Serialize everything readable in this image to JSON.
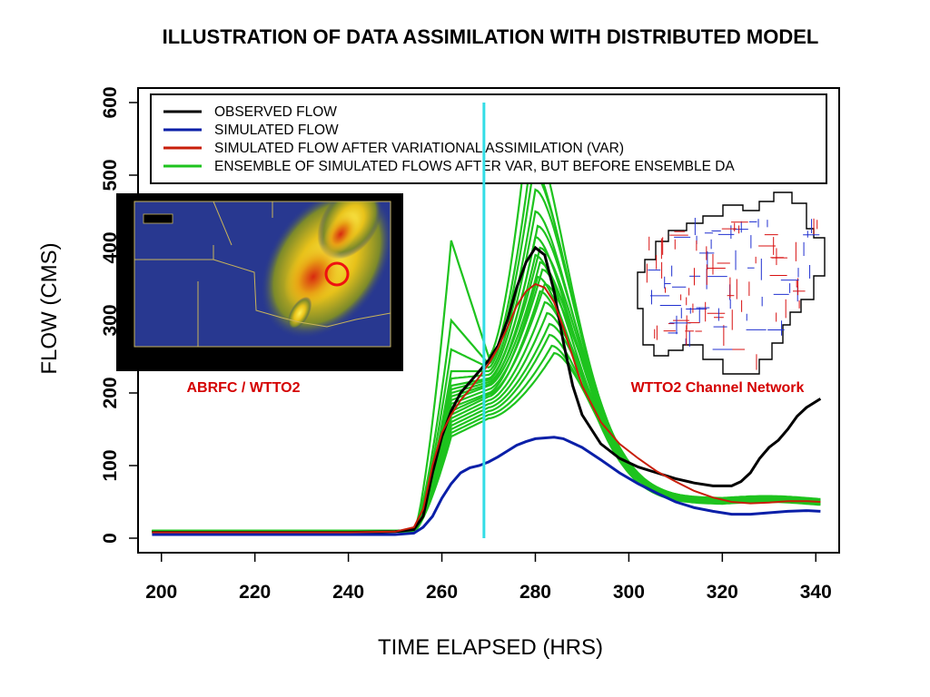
{
  "chart_data": {
    "type": "line",
    "title": "ILLUSTRATION OF DATA ASSIMILATION WITH DISTRIBUTED MODEL",
    "xlabel": "TIME ELAPSED (HRS)",
    "ylabel": "FLOW (CMS)",
    "xlim": [
      195,
      345
    ],
    "ylim": [
      -20,
      620
    ],
    "xticks": [
      200,
      220,
      240,
      260,
      280,
      300,
      320,
      340
    ],
    "yticks": [
      0,
      100,
      200,
      300,
      400,
      500,
      600
    ],
    "grid": false,
    "legend_position": "top",
    "vline": {
      "x": 269,
      "color": "#33dde6"
    },
    "series": [
      {
        "name": "OBSERVED FLOW",
        "color": "#000000",
        "points": [
          [
            198,
            8
          ],
          [
            220,
            8
          ],
          [
            240,
            8
          ],
          [
            250,
            9
          ],
          [
            254,
            12
          ],
          [
            256,
            30
          ],
          [
            258,
            90
          ],
          [
            260,
            140
          ],
          [
            262,
            175
          ],
          [
            264,
            200
          ],
          [
            266,
            215
          ],
          [
            268,
            230
          ],
          [
            270,
            245
          ],
          [
            272,
            265
          ],
          [
            274,
            300
          ],
          [
            276,
            345
          ],
          [
            278,
            380
          ],
          [
            280,
            400
          ],
          [
            282,
            390
          ],
          [
            284,
            340
          ],
          [
            286,
            270
          ],
          [
            288,
            210
          ],
          [
            290,
            170
          ],
          [
            294,
            130
          ],
          [
            298,
            110
          ],
          [
            302,
            98
          ],
          [
            306,
            90
          ],
          [
            310,
            82
          ],
          [
            314,
            76
          ],
          [
            318,
            72
          ],
          [
            322,
            72
          ],
          [
            324,
            78
          ],
          [
            326,
            90
          ],
          [
            328,
            110
          ],
          [
            330,
            125
          ],
          [
            332,
            135
          ],
          [
            334,
            150
          ],
          [
            336,
            168
          ],
          [
            338,
            180
          ],
          [
            341,
            192
          ]
        ]
      },
      {
        "name": "SIMULATED FLOW",
        "color": "#0a1fa8",
        "points": [
          [
            198,
            5
          ],
          [
            220,
            5
          ],
          [
            240,
            5
          ],
          [
            250,
            5
          ],
          [
            254,
            7
          ],
          [
            256,
            15
          ],
          [
            258,
            30
          ],
          [
            260,
            55
          ],
          [
            262,
            75
          ],
          [
            264,
            90
          ],
          [
            266,
            97
          ],
          [
            268,
            100
          ],
          [
            270,
            105
          ],
          [
            272,
            112
          ],
          [
            274,
            120
          ],
          [
            276,
            128
          ],
          [
            278,
            133
          ],
          [
            280,
            137
          ],
          [
            284,
            139
          ],
          [
            286,
            137
          ],
          [
            290,
            125
          ],
          [
            294,
            108
          ],
          [
            298,
            90
          ],
          [
            302,
            75
          ],
          [
            306,
            62
          ],
          [
            310,
            50
          ],
          [
            314,
            42
          ],
          [
            318,
            37
          ],
          [
            322,
            33
          ],
          [
            326,
            33
          ],
          [
            330,
            35
          ],
          [
            334,
            37
          ],
          [
            338,
            38
          ],
          [
            341,
            37
          ]
        ]
      },
      {
        "name": "SIMULATED FLOW AFTER VARIATIONAL ASSIMILATION (VAR)",
        "color": "#c81e0a",
        "points": [
          [
            198,
            8
          ],
          [
            220,
            8
          ],
          [
            240,
            8
          ],
          [
            250,
            9
          ],
          [
            254,
            15
          ],
          [
            256,
            40
          ],
          [
            258,
            100
          ],
          [
            260,
            145
          ],
          [
            262,
            170
          ],
          [
            264,
            190
          ],
          [
            266,
            205
          ],
          [
            268,
            222
          ],
          [
            270,
            240
          ],
          [
            272,
            262
          ],
          [
            274,
            290
          ],
          [
            276,
            320
          ],
          [
            278,
            340
          ],
          [
            280,
            350
          ],
          [
            282,
            345
          ],
          [
            284,
            325
          ],
          [
            286,
            290
          ],
          [
            288,
            250
          ],
          [
            290,
            210
          ],
          [
            294,
            160
          ],
          [
            298,
            130
          ],
          [
            302,
            110
          ],
          [
            306,
            92
          ],
          [
            310,
            78
          ],
          [
            314,
            65
          ],
          [
            318,
            56
          ],
          [
            322,
            50
          ],
          [
            326,
            48
          ],
          [
            330,
            49
          ],
          [
            334,
            51
          ],
          [
            338,
            51
          ],
          [
            341,
            50
          ]
        ]
      },
      {
        "name": "ENSEMBLE OF SIMULATED FLOWS AFTER VAR, BUT BEFORE ENSEMBLE DA",
        "color": "#1ec31e",
        "members": [
          {
            "peak": 570,
            "peakx": 278.5,
            "early": 410,
            "plateau": 250,
            "tail": 52
          },
          {
            "peak": 520,
            "peakx": 279,
            "early": 300,
            "plateau": 240,
            "tail": 55
          },
          {
            "peak": 505,
            "peakx": 279.5,
            "early": 260,
            "plateau": 235,
            "tail": 50
          },
          {
            "peak": 480,
            "peakx": 280,
            "early": 230,
            "plateau": 230,
            "tail": 48
          },
          {
            "peak": 450,
            "peakx": 280,
            "early": 220,
            "plateau": 225,
            "tail": 52
          },
          {
            "peak": 430,
            "peakx": 280.5,
            "early": 210,
            "plateau": 220,
            "tail": 54
          },
          {
            "peak": 415,
            "peakx": 280,
            "early": 205,
            "plateau": 218,
            "tail": 50
          },
          {
            "peak": 400,
            "peakx": 281,
            "early": 200,
            "plateau": 215,
            "tail": 49
          },
          {
            "peak": 390,
            "peakx": 280,
            "early": 195,
            "plateau": 212,
            "tail": 53
          },
          {
            "peak": 380,
            "peakx": 281,
            "early": 190,
            "plateau": 210,
            "tail": 51
          },
          {
            "peak": 370,
            "peakx": 281.5,
            "early": 185,
            "plateau": 205,
            "tail": 50
          },
          {
            "peak": 360,
            "peakx": 280.5,
            "early": 180,
            "plateau": 200,
            "tail": 47
          },
          {
            "peak": 350,
            "peakx": 282,
            "early": 175,
            "plateau": 198,
            "tail": 52
          },
          {
            "peak": 340,
            "peakx": 281,
            "early": 170,
            "plateau": 195,
            "tail": 50
          },
          {
            "peak": 325,
            "peakx": 282,
            "early": 165,
            "plateau": 190,
            "tail": 49
          },
          {
            "peak": 310,
            "peakx": 282.5,
            "early": 160,
            "plateau": 185,
            "tail": 51
          },
          {
            "peak": 295,
            "peakx": 283,
            "early": 155,
            "plateau": 180,
            "tail": 53
          },
          {
            "peak": 280,
            "peakx": 283,
            "early": 150,
            "plateau": 175,
            "tail": 50
          },
          {
            "peak": 265,
            "peakx": 283.5,
            "early": 145,
            "plateau": 170,
            "tail": 48
          },
          {
            "peak": 255,
            "peakx": 284,
            "early": 140,
            "plateau": 165,
            "tail": 52
          }
        ]
      }
    ]
  },
  "insets": {
    "radar_caption": "ABRFC / WTTO2",
    "network_caption": "WTTO2 Channel Network"
  }
}
